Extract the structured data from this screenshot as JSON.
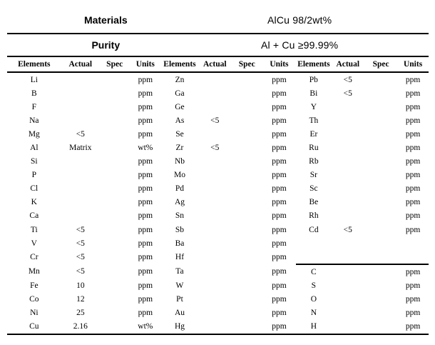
{
  "title_rows": {
    "materials_label": "Materials",
    "materials_value": "AlCu 98/2wt%",
    "purity_label": "Purity",
    "purity_value": "Al + Cu ≥99.99%"
  },
  "table": {
    "column_headers": [
      "Elements",
      "Actual",
      "Spec",
      "Units"
    ],
    "groups": [
      {
        "name": "group-1",
        "rows": [
          {
            "element": "Li",
            "actual": "",
            "spec": "",
            "units": "ppm"
          },
          {
            "element": "B",
            "actual": "",
            "spec": "",
            "units": "ppm"
          },
          {
            "element": "F",
            "actual": "",
            "spec": "",
            "units": "ppm"
          },
          {
            "element": "Na",
            "actual": "",
            "spec": "",
            "units": "ppm"
          },
          {
            "element": "Mg",
            "actual": "<5",
            "spec": "",
            "units": "ppm"
          },
          {
            "element": "Al",
            "actual": "Matrix",
            "spec": "",
            "units": "wt%"
          },
          {
            "element": "Si",
            "actual": "",
            "spec": "",
            "units": "ppm"
          },
          {
            "element": "P",
            "actual": "",
            "spec": "",
            "units": "ppm"
          },
          {
            "element": "Cl",
            "actual": "",
            "spec": "",
            "units": "ppm"
          },
          {
            "element": "K",
            "actual": "",
            "spec": "",
            "units": "ppm"
          },
          {
            "element": "Ca",
            "actual": "",
            "spec": "",
            "units": "ppm"
          },
          {
            "element": "Ti",
            "actual": "<5",
            "spec": "",
            "units": "ppm"
          },
          {
            "element": "V",
            "actual": "<5",
            "spec": "",
            "units": "ppm"
          },
          {
            "element": "Cr",
            "actual": "<5",
            "spec": "",
            "units": "ppm"
          },
          {
            "element": "Mn",
            "actual": "<5",
            "spec": "",
            "units": "ppm"
          },
          {
            "element": "Fe",
            "actual": "10",
            "spec": "",
            "units": "ppm"
          },
          {
            "element": "Co",
            "actual": "12",
            "spec": "",
            "units": "ppm"
          },
          {
            "element": "Ni",
            "actual": "25",
            "spec": "",
            "units": "ppm"
          },
          {
            "element": "Cu",
            "actual": "2.16",
            "spec": "",
            "units": "wt%"
          }
        ]
      },
      {
        "name": "group-2",
        "rows": [
          {
            "element": "Zn",
            "actual": "",
            "spec": "",
            "units": "ppm"
          },
          {
            "element": "Ga",
            "actual": "",
            "spec": "",
            "units": "ppm"
          },
          {
            "element": "Ge",
            "actual": "",
            "spec": "",
            "units": "ppm"
          },
          {
            "element": "As",
            "actual": "<5",
            "spec": "",
            "units": "ppm"
          },
          {
            "element": "Se",
            "actual": "",
            "spec": "",
            "units": "ppm"
          },
          {
            "element": "Zr",
            "actual": "<5",
            "spec": "",
            "units": "ppm"
          },
          {
            "element": "Nb",
            "actual": "",
            "spec": "",
            "units": "ppm"
          },
          {
            "element": "Mo",
            "actual": "",
            "spec": "",
            "units": "ppm"
          },
          {
            "element": "Pd",
            "actual": "",
            "spec": "",
            "units": "ppm"
          },
          {
            "element": "Ag",
            "actual": "",
            "spec": "",
            "units": "ppm"
          },
          {
            "element": "Sn",
            "actual": "",
            "spec": "",
            "units": "ppm"
          },
          {
            "element": "Sb",
            "actual": "",
            "spec": "",
            "units": "ppm"
          },
          {
            "element": "Ba",
            "actual": "",
            "spec": "",
            "units": "ppm"
          },
          {
            "element": "Hf",
            "actual": "",
            "spec": "",
            "units": "ppm"
          },
          {
            "element": "Ta",
            "actual": "",
            "spec": "",
            "units": "ppm"
          },
          {
            "element": "W",
            "actual": "",
            "spec": "",
            "units": "ppm"
          },
          {
            "element": "Pt",
            "actual": "",
            "spec": "",
            "units": "ppm"
          },
          {
            "element": "Au",
            "actual": "",
            "spec": "",
            "units": "ppm"
          },
          {
            "element": "Hg",
            "actual": "",
            "spec": "",
            "units": "ppm"
          }
        ]
      },
      {
        "name": "group-3",
        "rows": [
          {
            "element": "Pb",
            "actual": "<5",
            "spec": "",
            "units": "ppm"
          },
          {
            "element": "Bi",
            "actual": "<5",
            "spec": "",
            "units": "ppm"
          },
          {
            "element": "Y",
            "actual": "",
            "spec": "",
            "units": "ppm"
          },
          {
            "element": "Th",
            "actual": "",
            "spec": "",
            "units": "ppm"
          },
          {
            "element": "Er",
            "actual": "",
            "spec": "",
            "units": "ppm"
          },
          {
            "element": "Ru",
            "actual": "",
            "spec": "",
            "units": "ppm"
          },
          {
            "element": "Rb",
            "actual": "",
            "spec": "",
            "units": "ppm"
          },
          {
            "element": "Sr",
            "actual": "",
            "spec": "",
            "units": "ppm"
          },
          {
            "element": "Sc",
            "actual": "",
            "spec": "",
            "units": "ppm"
          },
          {
            "element": "Be",
            "actual": "",
            "spec": "",
            "units": "ppm"
          },
          {
            "element": "Rh",
            "actual": "",
            "spec": "",
            "units": "ppm"
          },
          {
            "element": "Cd",
            "actual": "<5",
            "spec": "",
            "units": "ppm"
          },
          {
            "element": "",
            "actual": "",
            "spec": "",
            "units": ""
          },
          {
            "element": "",
            "actual": "",
            "spec": "",
            "units": "",
            "rule_below": true
          },
          {
            "element": "C",
            "actual": "",
            "spec": "",
            "units": "ppm"
          },
          {
            "element": "S",
            "actual": "",
            "spec": "",
            "units": "ppm"
          },
          {
            "element": "O",
            "actual": "",
            "spec": "",
            "units": "ppm"
          },
          {
            "element": "N",
            "actual": "",
            "spec": "",
            "units": "ppm"
          },
          {
            "element": "H",
            "actual": "",
            "spec": "",
            "units": "ppm"
          }
        ]
      }
    ],
    "column_widths_pct": [
      12.8,
      9.2,
      7.0,
      7.6,
      8.7,
      8.0,
      7.2,
      8.1,
      8.3,
      7.9,
      7.8,
      7.4
    ]
  }
}
